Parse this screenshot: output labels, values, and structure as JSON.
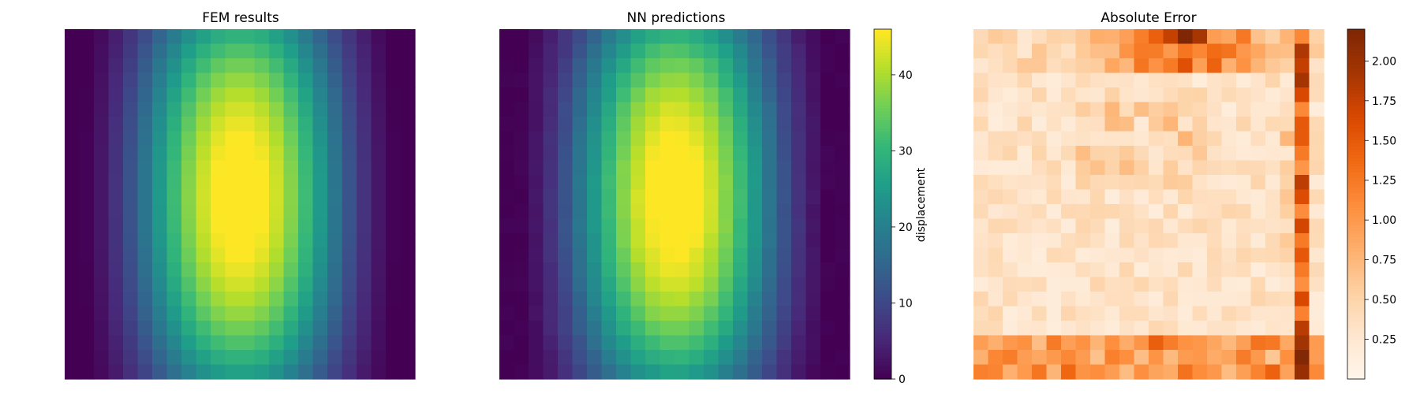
{
  "chart_data": [
    {
      "type": "heatmap",
      "title": "FEM results",
      "grid": [
        24,
        24
      ],
      "colormap": "viridis",
      "value_range": [
        0,
        46
      ],
      "description_of_field": "smooth displacement field, low (~0) along left and right edges, peak (~46) centered slightly right of middle near row 12, ~26 at top and bottom centre",
      "peak": {
        "value": 46,
        "col": 12,
        "row": 11.5
      },
      "colorbar": null
    },
    {
      "type": "heatmap",
      "title": "NN predictions",
      "grid": [
        24,
        24
      ],
      "colormap": "viridis",
      "value_range": [
        0,
        46
      ],
      "peak": {
        "value": 46,
        "col": 12,
        "row": 11.5
      },
      "colorbar": {
        "label": "displacement",
        "min": 0,
        "max": 46,
        "ticks": [
          0,
          10,
          20,
          30,
          40
        ]
      }
    },
    {
      "type": "heatmap",
      "title": "Absolute Error",
      "grid": [
        24,
        24
      ],
      "colormap": "Oranges",
      "value_range": [
        0,
        2.2
      ],
      "peak": {
        "value": 2.2,
        "col": 14,
        "row": 0
      },
      "colorbar": {
        "label": "",
        "min": 0,
        "max": 2.2,
        "ticks": [
          0.25,
          0.5,
          0.75,
          1.0,
          1.25,
          1.5,
          1.75,
          2.0
        ],
        "tick_labels": [
          "0.25",
          "0.50",
          "0.75",
          "1.00",
          "1.25",
          "1.50",
          "1.75",
          "2.00"
        ]
      }
    }
  ],
  "colors": {
    "viridis": [
      "#440154",
      "#482878",
      "#3e4989",
      "#31688e",
      "#26828e",
      "#1f9e89",
      "#35b779",
      "#6ece58",
      "#b5de2b",
      "#fde725"
    ],
    "oranges": [
      "#fff5eb",
      "#fee6ce",
      "#fdd0a2",
      "#fdae6b",
      "#fd8d3c",
      "#f16913",
      "#d94801",
      "#a63603",
      "#7f2704"
    ]
  }
}
